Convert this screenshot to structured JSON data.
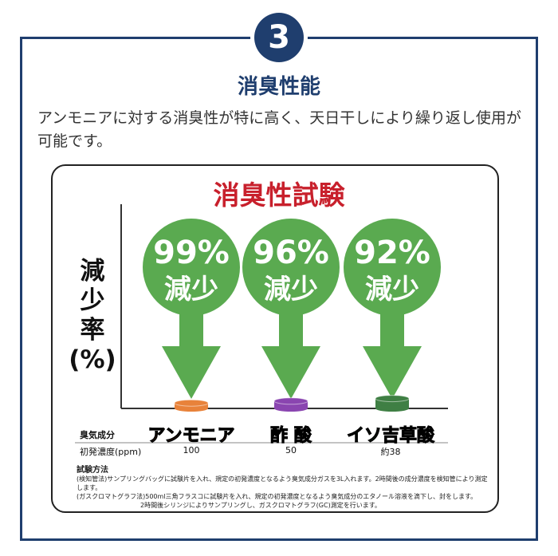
{
  "step_number": "3",
  "section_title": "消臭性能",
  "description": "アンモニアに対する消臭性が特に高く、天日干しにより繰り返し使用が可能です。",
  "chart_data": {
    "type": "bar",
    "title": "消臭性試験",
    "ylabel": "減少率\n(%)",
    "categories": [
      "アンモニア",
      "酢 酸",
      "イソ吉草酸"
    ],
    "values": [
      99,
      96,
      92
    ],
    "value_labels": [
      "99%",
      "96%",
      "92%"
    ],
    "reduction_word": "減少",
    "category_colors": [
      "#e06a1e",
      "#7a2e98",
      "#1e6e3a"
    ],
    "cylinder_colors": [
      "#e8823a",
      "#8a45b0",
      "#3f7f44"
    ],
    "arrow_color": "#5aaa50",
    "row_headers": {
      "odor": "臭気成分",
      "concentration": "初発濃度(ppm)"
    },
    "initial_concentrations": [
      "100",
      "50",
      "約38"
    ]
  },
  "method": {
    "title": "試験方法",
    "lines": [
      "(検知管法)サンプリングバッグに試験片を入れ、規定の初発濃度となるよう臭気成分ガスを3L入れます。2時間後の成分濃度を検知管により測定します。",
      "(ガスクロマトグラフ法)500ml三角フラスコに試験片を入れ、規定の初発濃度となるよう臭気成分のエタノール溶液を滴下し、封をします。",
      "2時間後シリンジによりサンプリングし、ガスクロマトグラフ(GC)測定を行います。"
    ]
  }
}
